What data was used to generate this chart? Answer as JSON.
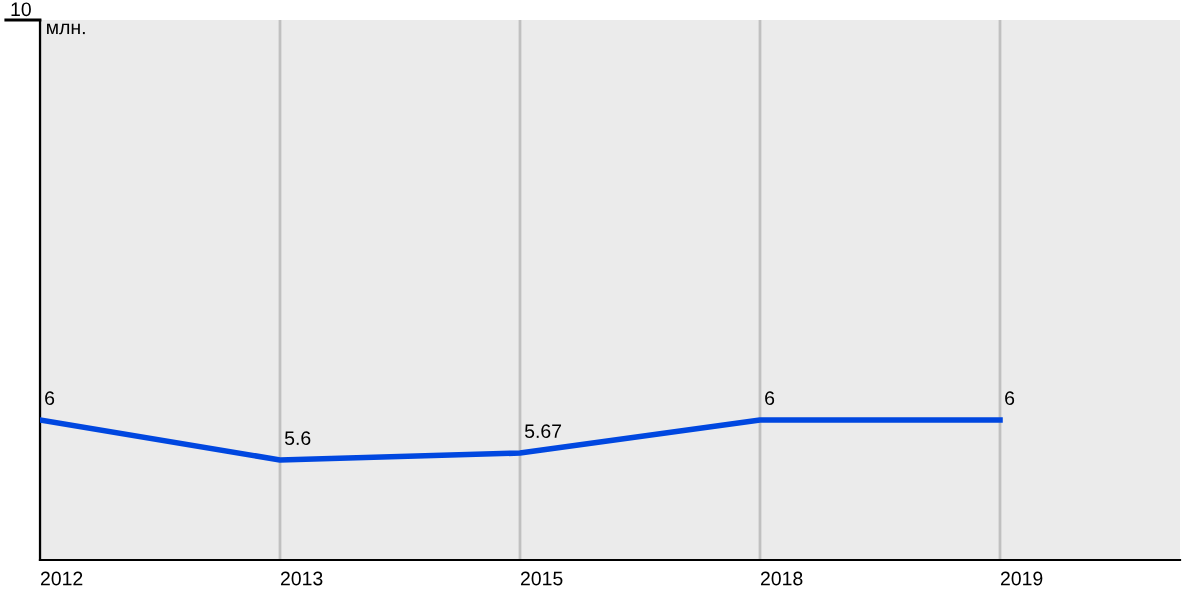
{
  "chart_data": {
    "type": "line",
    "ylabel": "млн.",
    "categories": [
      "2012",
      "2013",
      "2015",
      "2018",
      "2019"
    ],
    "series": [
      {
        "color": "#0047e0",
        "values": [
          6,
          5.6,
          5.67,
          6,
          6
        ]
      }
    ],
    "ylim": [
      4.6,
      10
    ],
    "annotations": [
      "10"
    ],
    "grid": true,
    "data_labels": true,
    "marker": "none",
    "line_style": "solid"
  }
}
